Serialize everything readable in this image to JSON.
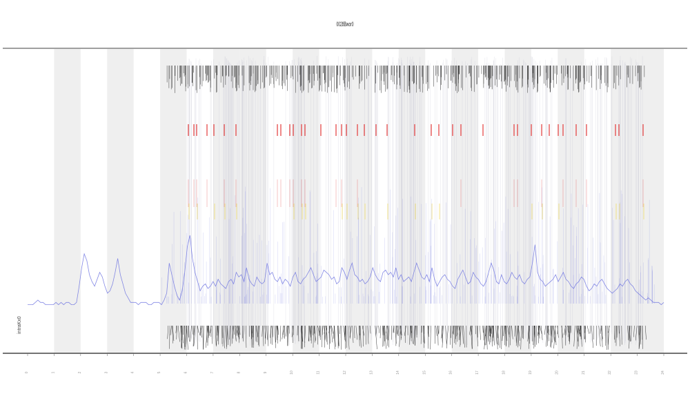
{
  "chart_data": {
    "type": "line",
    "title": "0028Bwor0",
    "xlabel": "",
    "ylabel": "",
    "inset_label": "intraKx0",
    "grid": false,
    "bands": [
      1,
      3,
      5,
      7,
      8,
      10,
      12,
      14,
      16,
      18,
      20,
      22,
      23
    ],
    "x_ticks": [
      "0",
      "1",
      "2",
      "3",
      "4",
      "5",
      "6",
      "7",
      "8",
      "9",
      "10",
      "11",
      "12",
      "13",
      "14",
      "15",
      "16",
      "17",
      "18",
      "19",
      "20",
      "21",
      "22",
      "23",
      "24"
    ],
    "colors": {
      "line": "#6f74e0",
      "band": "#efefef",
      "red": "#e23a3a",
      "yellow": "#f0d84a",
      "ticks": "#333333",
      "axis": "#666666"
    },
    "series": [
      {
        "values": [
          4,
          4,
          4,
          5,
          6,
          5,
          5,
          4,
          4,
          4,
          4,
          5,
          4,
          5,
          4,
          5,
          5,
          4,
          4,
          5,
          12,
          20,
          26,
          23,
          17,
          14,
          12,
          15,
          18,
          16,
          12,
          9,
          10,
          13,
          18,
          24,
          17,
          13,
          9,
          7,
          5,
          5,
          5,
          4,
          5,
          5,
          5,
          4,
          4,
          5,
          5,
          5,
          4,
          6,
          9,
          22,
          17,
          12,
          8,
          6,
          10,
          18,
          29,
          34,
          24,
          18,
          14,
          10,
          12,
          13,
          11,
          12,
          14,
          12,
          15,
          13,
          12,
          11,
          14,
          15,
          13,
          18,
          16,
          17,
          14,
          20,
          15,
          13,
          12,
          16,
          14,
          13,
          14,
          22,
          17,
          18,
          15,
          14,
          16,
          13,
          15,
          14,
          12,
          16,
          18,
          14,
          13,
          15,
          16,
          18,
          20,
          17,
          14,
          15,
          16,
          19,
          18,
          17,
          15,
          16,
          13,
          14,
          20,
          18,
          15,
          19,
          22,
          17,
          16,
          14,
          15,
          13,
          14,
          16,
          20,
          17,
          15,
          14,
          18,
          19,
          17,
          18,
          16,
          20,
          15,
          17,
          14,
          15,
          16,
          14,
          18,
          22,
          19,
          16,
          15,
          17,
          14,
          20,
          15,
          12,
          14,
          16,
          17,
          15,
          14,
          12,
          11,
          15,
          17,
          19,
          16,
          13,
          14,
          18,
          16,
          15,
          13,
          12,
          14,
          18,
          22,
          19,
          14,
          13,
          17,
          14,
          13,
          15,
          18,
          16,
          15,
          17,
          14,
          13,
          15,
          16,
          22,
          30,
          18,
          15,
          14,
          12,
          13,
          14,
          15,
          17,
          14,
          16,
          18,
          15,
          14,
          12,
          11,
          13,
          14,
          16,
          15,
          12,
          10,
          11,
          13,
          12,
          14,
          15,
          13,
          11,
          10,
          9,
          10,
          11,
          13,
          12,
          14,
          15,
          13,
          12,
          10,
          9,
          8,
          7,
          6,
          7,
          6,
          5,
          5,
          5,
          4,
          5
        ]
      }
    ]
  }
}
